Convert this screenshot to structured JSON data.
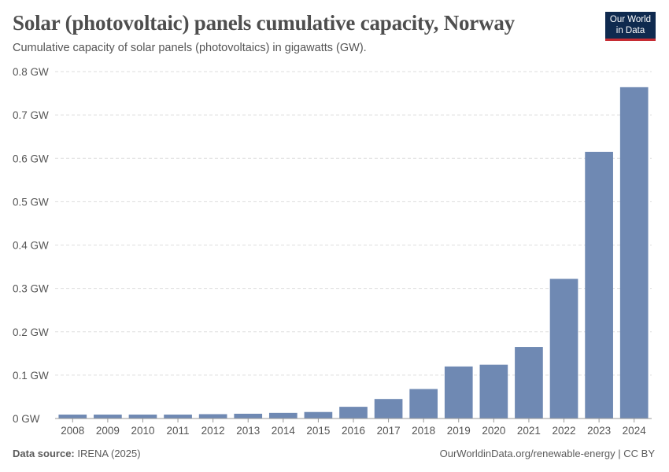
{
  "header": {
    "title": "Solar (photovoltaic) panels cumulative capacity, Norway",
    "subtitle": "Cumulative capacity of solar panels (photovoltaics) in gigawatts (GW).",
    "logo_line1": "Our World",
    "logo_line2": "in Data"
  },
  "footer": {
    "source_label": "Data source:",
    "source_value": "IRENA (2025)",
    "right_text": "OurWorldinData.org/renewable-energy | CC BY"
  },
  "colors": {
    "bar": "#6f89b3",
    "grid": "#dddddd",
    "axis": "#999999",
    "tick_text": "#555555"
  },
  "chart_data": {
    "type": "bar",
    "title": "Solar (photovoltaic) panels cumulative capacity, Norway",
    "xlabel": "",
    "ylabel": "",
    "ylim": [
      0,
      0.8
    ],
    "yticks": [
      0,
      0.1,
      0.2,
      0.3,
      0.4,
      0.5,
      0.6,
      0.7,
      0.8
    ],
    "ytick_labels": [
      "0 GW",
      "0.1 GW",
      "0.2 GW",
      "0.3 GW",
      "0.4 GW",
      "0.5 GW",
      "0.6 GW",
      "0.7 GW",
      "0.8 GW"
    ],
    "grid": true,
    "categories": [
      "2008",
      "2009",
      "2010",
      "2011",
      "2012",
      "2013",
      "2014",
      "2015",
      "2016",
      "2017",
      "2018",
      "2019",
      "2020",
      "2021",
      "2022",
      "2023",
      "2024"
    ],
    "values": [
      0.009,
      0.009,
      0.009,
      0.009,
      0.01,
      0.011,
      0.013,
      0.015,
      0.027,
      0.045,
      0.068,
      0.12,
      0.124,
      0.165,
      0.322,
      0.615,
      0.764
    ]
  }
}
